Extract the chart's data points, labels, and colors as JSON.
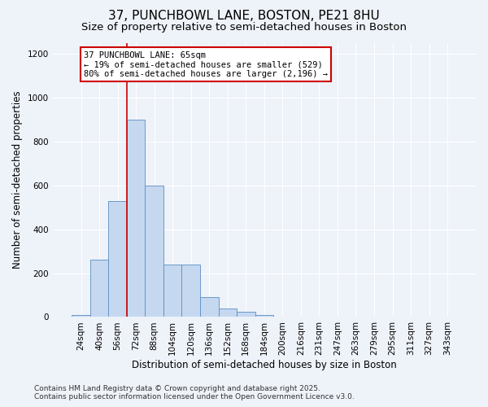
{
  "title_line1": "37, PUNCHBOWL LANE, BOSTON, PE21 8HU",
  "title_line2": "Size of property relative to semi-detached houses in Boston",
  "xlabel": "Distribution of semi-detached houses by size in Boston",
  "ylabel": "Number of semi-detached properties",
  "categories": [
    "24sqm",
    "40sqm",
    "56sqm",
    "72sqm",
    "88sqm",
    "104sqm",
    "120sqm",
    "136sqm",
    "152sqm",
    "168sqm",
    "184sqm",
    "200sqm",
    "216sqm",
    "231sqm",
    "247sqm",
    "263sqm",
    "279sqm",
    "295sqm",
    "311sqm",
    "327sqm",
    "343sqm"
  ],
  "values": [
    10,
    260,
    530,
    900,
    600,
    240,
    240,
    90,
    40,
    25,
    10,
    0,
    0,
    0,
    0,
    0,
    0,
    0,
    0,
    0,
    0
  ],
  "bar_color": "#c5d8f0",
  "bar_edge_color": "#5a8fc2",
  "redline_x": 2.5,
  "annotation_line1": "37 PUNCHBOWL LANE: 65sqm",
  "annotation_line2": "← 19% of semi-detached houses are smaller (529)",
  "annotation_line3": "80% of semi-detached houses are larger (2,196) →",
  "ylim": [
    0,
    1250
  ],
  "yticks": [
    0,
    200,
    400,
    600,
    800,
    1000,
    1200
  ],
  "footer_line1": "Contains HM Land Registry data © Crown copyright and database right 2025.",
  "footer_line2": "Contains public sector information licensed under the Open Government Licence v3.0.",
  "background_color": "#eef2f9",
  "grid_color": "#ffffff",
  "annotation_box_facecolor": "#ffffff",
  "annotation_box_edgecolor": "#cc0000",
  "redline_color": "#cc0000",
  "title_fontsize": 11,
  "subtitle_fontsize": 9.5,
  "axis_label_fontsize": 8.5,
  "tick_fontsize": 7.5,
  "annotation_fontsize": 7.5,
  "footer_fontsize": 6.5
}
